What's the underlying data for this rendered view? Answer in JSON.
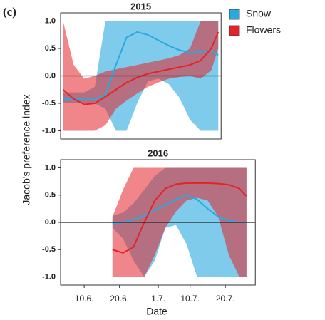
{
  "panel_label": "(c)",
  "ylabel": "Jacob's preference index",
  "xlabel": "Date",
  "chart_data": [
    {
      "type": "line",
      "title": "2015",
      "x": [
        3,
        6,
        9,
        12,
        15,
        18,
        21,
        24,
        27,
        30,
        33,
        36,
        39,
        42,
        45,
        47
      ],
      "xlim": [
        2.3,
        47.8
      ],
      "ylim": [
        -1.15,
        1.15
      ],
      "yticks": [
        {
          "value": 1,
          "label": "1.0"
        },
        0.5,
        {
          "value": 0,
          "label": "0.0"
        },
        -0.5,
        {
          "value": -1,
          "label": "-1.0"
        }
      ],
      "hline": 0,
      "series": [
        {
          "name": "Snow",
          "color": "#2aa9e0",
          "values": [
            -0.42,
            -0.42,
            -0.43,
            -0.43,
            -0.35,
            0.2,
            0.7,
            0.8,
            0.75,
            0.65,
            0.55,
            0.47,
            0.42,
            0.44,
            0.45,
            0.38
          ],
          "lower": [
            -0.5,
            -0.5,
            -0.5,
            -0.5,
            -0.6,
            -1,
            -1,
            -0.5,
            -0.1,
            -0.05,
            -0.15,
            -0.4,
            -0.8,
            -1,
            -1,
            -1
          ],
          "upper": [
            -0.3,
            -0.3,
            -0.3,
            -0.2,
            1,
            1,
            1,
            1,
            1,
            1,
            1,
            1,
            1,
            1,
            1,
            1
          ]
        },
        {
          "name": "Flowers",
          "color": "#e3232a",
          "values": [
            -0.25,
            -0.42,
            -0.52,
            -0.5,
            -0.38,
            -0.25,
            -0.12,
            -0.03,
            0.04,
            0.08,
            0.12,
            0.16,
            0.2,
            0.28,
            0.5,
            0.8
          ],
          "lower": [
            -1,
            -1,
            -1,
            -1,
            -0.9,
            -0.6,
            -0.45,
            -0.32,
            -0.2,
            -0.12,
            -0.05,
            -0.02,
            0,
            -0.05,
            0.1,
            0.5
          ],
          "upper": [
            1,
            0.2,
            -0.05,
            0,
            0.08,
            0.12,
            0.16,
            0.2,
            0.24,
            0.28,
            0.32,
            0.38,
            0.5,
            1,
            1,
            1
          ]
        }
      ]
    },
    {
      "type": "line",
      "title": "2016",
      "x": [
        17,
        20,
        23,
        26,
        29,
        32,
        35,
        38,
        41,
        44,
        47,
        50,
        53,
        55
      ],
      "xlim": [
        2.3,
        57.5
      ],
      "xticks": [
        {
          "value": 9,
          "label": "10.6."
        },
        {
          "value": 19,
          "label": "20.6."
        },
        {
          "value": 30,
          "label": "1.7."
        },
        {
          "value": 39,
          "label": "10.7."
        },
        {
          "value": 49,
          "label": "20.7."
        }
      ],
      "ylim": [
        -1.15,
        1.15
      ],
      "yticks": [
        {
          "value": 1,
          "label": "1.0"
        },
        0.5,
        {
          "value": 0,
          "label": "0.0"
        },
        -0.5,
        {
          "value": -1,
          "label": "-1.0"
        }
      ],
      "hline": 0,
      "series": [
        {
          "color": "#2aa9e0",
          "values": [
            -0.02,
            0,
            0.05,
            0.12,
            0.22,
            0.32,
            0.42,
            0.5,
            0.42,
            0.25,
            0.1,
            0.03,
            0,
            0
          ],
          "lower": [
            -0.1,
            -0.3,
            -0.7,
            -1,
            -0.7,
            -0.1,
            -0.05,
            -0.4,
            -1,
            -1,
            -1,
            -1,
            -1,
            -1
          ],
          "upper": [
            0.12,
            0.18,
            0.35,
            0.6,
            0.85,
            1,
            1,
            1,
            1,
            1,
            1,
            1,
            1,
            1
          ]
        },
        {
          "color": "#e3232a",
          "values": [
            -0.5,
            -0.56,
            -0.45,
            0,
            0.4,
            0.62,
            0.7,
            0.72,
            0.72,
            0.72,
            0.71,
            0.69,
            0.62,
            0.48
          ],
          "lower": [
            -1,
            -1,
            -1,
            -1,
            -0.6,
            -0.1,
            0.2,
            0.4,
            0.45,
            0.4,
            0.1,
            -0.6,
            -1,
            -1
          ],
          "upper": [
            0.1,
            0.6,
            1,
            1,
            1,
            1,
            1,
            1,
            1,
            1,
            1,
            1,
            1,
            1
          ]
        }
      ]
    }
  ]
}
